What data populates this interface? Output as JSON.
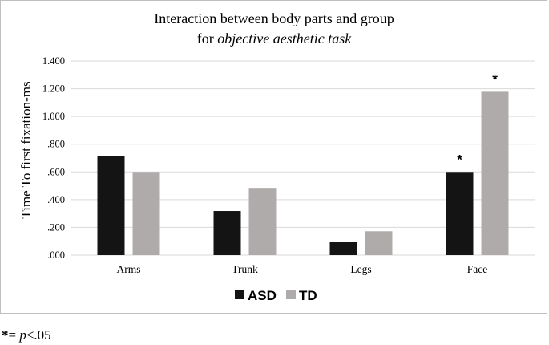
{
  "chart_data": {
    "type": "bar",
    "title_line1": "Interaction between body parts and group",
    "title_line2_prefix": "for ",
    "title_line2_italic": "objective aesthetic task",
    "ylabel": "Time To first fixation-ms",
    "xlabel": "",
    "categories": [
      "Arms",
      "Trunk",
      "Legs",
      "Face"
    ],
    "ylim": [
      0,
      1.4
    ],
    "yticks": [
      0,
      0.2,
      0.4,
      0.6,
      0.8,
      1.0,
      1.2,
      1.4
    ],
    "ytick_labels": [
      ".000",
      ".200",
      ".400",
      ".600",
      ".800",
      "1.000",
      "1.200",
      "1.400"
    ],
    "series": [
      {
        "name": "ASD",
        "values": [
          0.715,
          0.318,
          0.098,
          0.6
        ],
        "color": "#141414"
      },
      {
        "name": "TD",
        "values": [
          0.6,
          0.485,
          0.172,
          1.178
        ],
        "color": "#afabab"
      }
    ],
    "significance_markers": [
      {
        "series": "ASD",
        "category": "Face",
        "label": "*"
      },
      {
        "series": "TD",
        "category": "Face",
        "label": "*"
      }
    ],
    "grid": true,
    "grid_color": "#d9d9d9",
    "legend_position": "bottom"
  },
  "footnote": {
    "star": "*",
    "eq": "= ",
    "p": "p",
    "rest": "<.05"
  }
}
